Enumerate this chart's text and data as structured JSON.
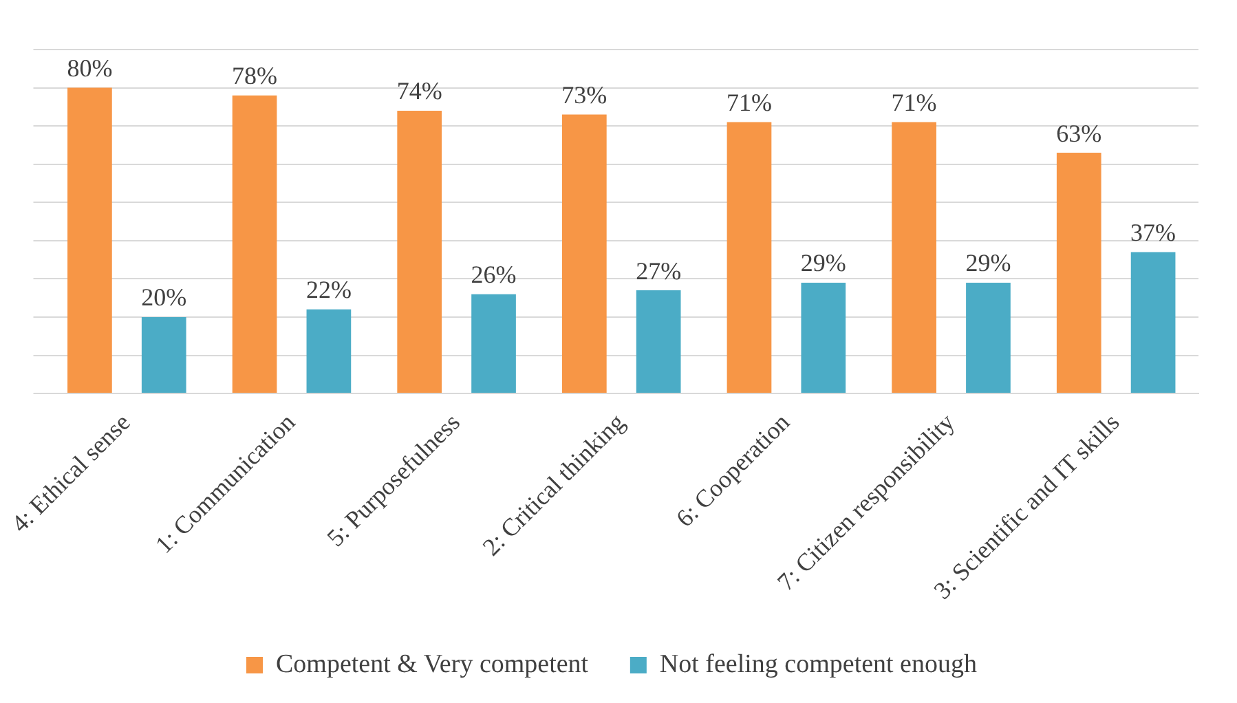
{
  "chart_data": {
    "type": "bar",
    "categories": [
      "4: Ethical sense",
      "1: Communication",
      "5: Purposefulness",
      "2: Critical thinking",
      "6: Cooperation",
      "7: Citizen responsibility",
      "3: Scientific and IT skills"
    ],
    "series": [
      {
        "name": "Competent & Very competent",
        "color": "#f79646",
        "values": [
          80,
          78,
          74,
          73,
          71,
          71,
          63
        ],
        "value_labels": [
          "80%",
          "78%",
          "74%",
          "73%",
          "71%",
          "71%",
          "63%"
        ]
      },
      {
        "name": "Not feeling competent enough",
        "color": "#4bacc6",
        "values": [
          20,
          22,
          26,
          27,
          29,
          29,
          37
        ],
        "value_labels": [
          "20%",
          "22%",
          "26%",
          "27%",
          "29%",
          "29%",
          "37%"
        ]
      }
    ],
    "ylim": [
      0,
      90
    ],
    "yticks": [
      {
        "value": 0,
        "label": null
      },
      {
        "value": 10,
        "label": null
      },
      {
        "value": 20,
        "label": null
      },
      {
        "value": 30,
        "label": null
      },
      {
        "value": 40,
        "label": null
      },
      {
        "value": 50,
        "label": null
      },
      {
        "value": 60,
        "label": null
      },
      {
        "value": 70,
        "label": null
      },
      {
        "value": 80,
        "label": null
      },
      {
        "value": 90,
        "label": null
      }
    ],
    "tick_labels": "x",
    "grid": "y",
    "legend": "bottom"
  }
}
